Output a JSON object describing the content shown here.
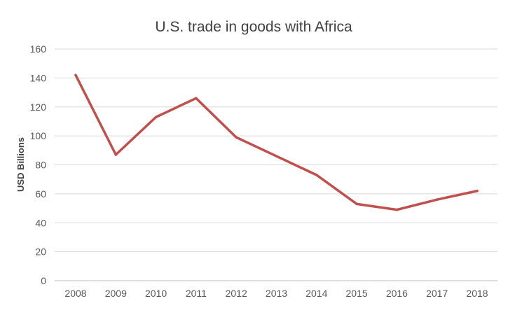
{
  "chart_data": {
    "type": "line",
    "title": "U.S. trade in goods with Africa",
    "xlabel": "",
    "ylabel": "USD Billions",
    "categories": [
      "2008",
      "2009",
      "2010",
      "2011",
      "2012",
      "2013",
      "2014",
      "2015",
      "2016",
      "2017",
      "2018"
    ],
    "series": [
      {
        "values": [
          142,
          87,
          113,
          126,
          99,
          86,
          73,
          53,
          49,
          56,
          62
        ],
        "color": "#c0504d"
      }
    ],
    "ylim": [
      0,
      160
    ],
    "yticks": [
      "0",
      "20",
      "40",
      "60",
      "80",
      "100",
      "120",
      "140",
      "160"
    ],
    "grid": true,
    "legend": "none"
  }
}
